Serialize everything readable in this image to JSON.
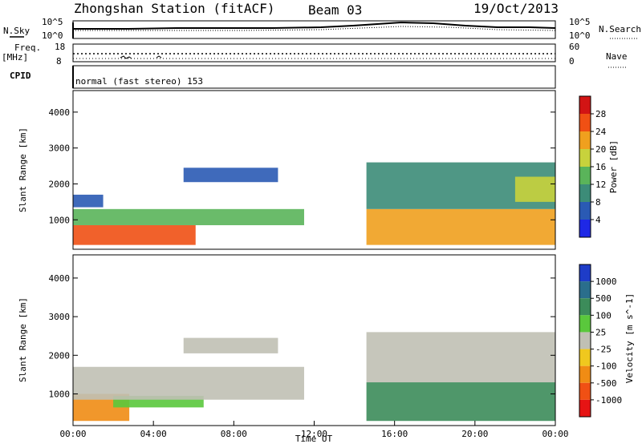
{
  "header": {
    "station": "Zhongshan Station (fitACF)",
    "beam": "Beam 03",
    "date": "19/Oct/2013"
  },
  "top_panels": {
    "nsky_label": "N.Sky",
    "nsky_ticks": [
      "10^5",
      "10^0"
    ],
    "nsearch_label": "N.Search",
    "nsearch_ticks": [
      "10^5",
      "10^0"
    ],
    "freq_label": "Freq.",
    "freq_unit": "[MHz]",
    "freq_ticks": [
      "18",
      "8"
    ],
    "nave_label": "Nave",
    "nave_ticks": [
      "60",
      "0"
    ],
    "cpid_label": "CPID",
    "cpid_value": "normal (fast stereo) 153"
  },
  "chart_data": [
    {
      "type": "heatmap",
      "name": "power",
      "ylabel": "Slant Range [km]",
      "xlabel": "",
      "xlim": [
        0,
        24
      ],
      "ylim": [
        180,
        4600
      ],
      "yticks": [
        "1000",
        "2000",
        "3000",
        "4000"
      ],
      "colorbar": {
        "label": "Power [dB]",
        "ticks": [
          "4",
          "8",
          "12",
          "16",
          "20",
          "24",
          "28"
        ],
        "colors": [
          "#1e28e6",
          "#2a5ab4",
          "#3c8c78",
          "#5ab45a",
          "#c8d23c",
          "#f0a01e",
          "#f05014",
          "#d21414"
        ]
      },
      "regions": [
        {
          "t0": 0.0,
          "t1": 6.1,
          "r0": 300,
          "r1": 850,
          "value": 27
        },
        {
          "t0": 0.0,
          "t1": 11.5,
          "r0": 850,
          "r1": 1300,
          "value": 14
        },
        {
          "t0": 0.0,
          "t1": 1.5,
          "r0": 1350,
          "r1": 1700,
          "value": 8
        },
        {
          "t0": 5.5,
          "t1": 10.2,
          "r0": 2050,
          "r1": 2450,
          "value": 5
        },
        {
          "t0": 14.6,
          "t1": 24.0,
          "r0": 300,
          "r1": 1300,
          "value": 22
        },
        {
          "t0": 14.6,
          "t1": 24.0,
          "r0": 1300,
          "r1": 2600,
          "value": 10
        },
        {
          "t0": 22.0,
          "t1": 24.0,
          "r0": 1500,
          "r1": 2200,
          "value": 20
        }
      ]
    },
    {
      "type": "heatmap",
      "name": "velocity",
      "ylabel": "Slant Range [km]",
      "xlabel": "Time UT",
      "xlim": [
        0,
        24
      ],
      "ylim": [
        180,
        4600
      ],
      "xticks": [
        "00:00",
        "04:00",
        "08:00",
        "12:00",
        "16:00",
        "20:00",
        "00:00"
      ],
      "yticks": [
        "1000",
        "2000",
        "3000",
        "4000"
      ],
      "colorbar": {
        "label": "Velocity [m s^-1]",
        "ticks": [
          "1000",
          "500",
          "100",
          "25",
          "-25",
          "-100",
          "-500",
          "-1000"
        ],
        "colors": [
          "#1e3cc8",
          "#2a6e8c",
          "#3c8c5a",
          "#5ac83c",
          "#c0c0b4",
          "#f0c81e",
          "#f08c14",
          "#f05014",
          "#e61414"
        ]
      },
      "regions": [
        {
          "t0": 0.0,
          "t1": 2.8,
          "r0": 300,
          "r1": 1000,
          "value": -300
        },
        {
          "t0": 2.0,
          "t1": 6.5,
          "r0": 650,
          "r1": 950,
          "value": 80
        },
        {
          "t0": 0.0,
          "t1": 11.5,
          "r0": 850,
          "r1": 1700,
          "value": 0
        },
        {
          "t0": 5.5,
          "t1": 10.2,
          "r0": 2050,
          "r1": 2450,
          "value": 0
        },
        {
          "t0": 14.6,
          "t1": 24.0,
          "r0": 300,
          "r1": 1300,
          "value": 200
        },
        {
          "t0": 14.6,
          "t1": 24.0,
          "r0": 1300,
          "r1": 2600,
          "value": 0
        }
      ]
    }
  ]
}
